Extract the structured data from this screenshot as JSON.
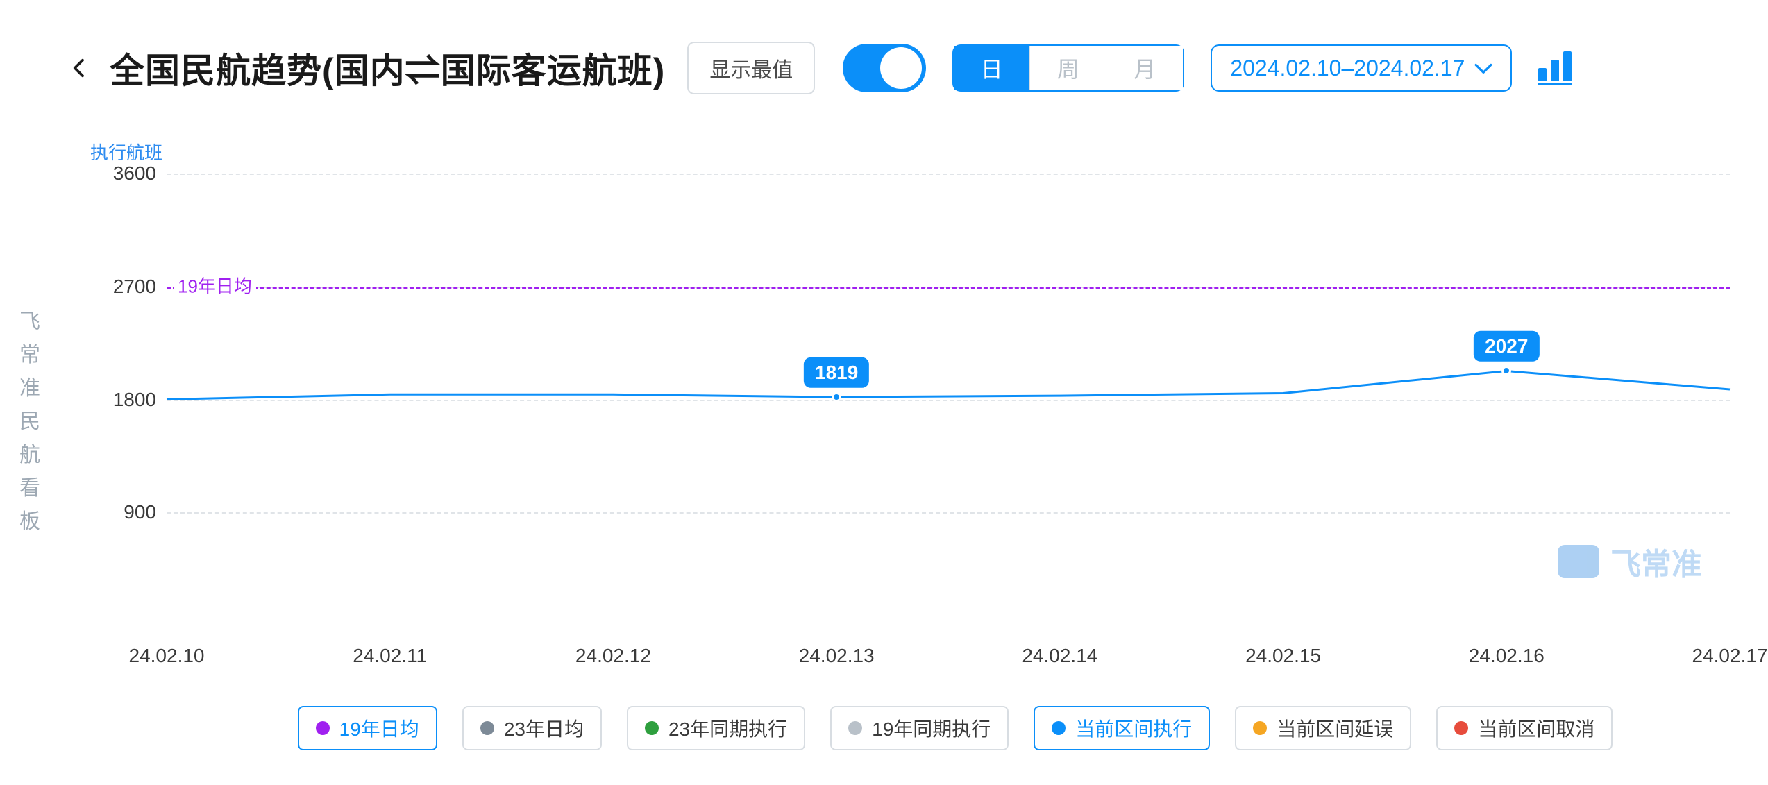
{
  "brand_vertical": "飞常准民航看板",
  "header": {
    "title": "全国民航趋势(国内⇌国际客运航班)",
    "show_max_label": "显示最值",
    "toggle_on": true,
    "segments": [
      {
        "label": "日",
        "active": true
      },
      {
        "label": "周",
        "active": false
      },
      {
        "label": "月",
        "active": false
      }
    ],
    "date_range": "2024.02.10–2024.02.17"
  },
  "chart": {
    "type": "line",
    "y_axis_title": "执行航班",
    "ylim": [
      0,
      3600
    ],
    "yticks": [
      900,
      1800,
      2700,
      3600
    ],
    "x_categories": [
      "24.02.10",
      "24.02.11",
      "24.02.12",
      "24.02.13",
      "24.02.14",
      "24.02.15",
      "24.02.16",
      "24.02.17"
    ],
    "reference_line": {
      "value": 2700,
      "label": "19年日均",
      "color": "#a020f0"
    },
    "series": {
      "name": "当前区间执行",
      "color": "#0b8ff9",
      "line_width": 3,
      "values": [
        1800,
        1840,
        1840,
        1819,
        1830,
        1850,
        2027,
        1880
      ]
    },
    "callouts": [
      {
        "x_index": 3,
        "label": "1819"
      },
      {
        "x_index": 6,
        "label": "2027"
      }
    ],
    "background_color": "#ffffff",
    "grid_color": "#e0e4e8",
    "tick_color": "#3a3a3a",
    "tick_fontsize": 28
  },
  "legend": [
    {
      "label": "19年日均",
      "color": "#a020f0",
      "active": true
    },
    {
      "label": "23年日均",
      "color": "#7d8a97",
      "active": false
    },
    {
      "label": "23年同期执行",
      "color": "#2e9f3e",
      "active": false
    },
    {
      "label": "19年同期执行",
      "color": "#b9c1c9",
      "active": false
    },
    {
      "label": "当前区间执行",
      "color": "#0b8ff9",
      "active": true
    },
    {
      "label": "当前区间延误",
      "color": "#f5a623",
      "active": false
    },
    {
      "label": "当前区间取消",
      "color": "#e74c3c",
      "active": false
    }
  ],
  "watermark": {
    "text": "飞常准"
  }
}
